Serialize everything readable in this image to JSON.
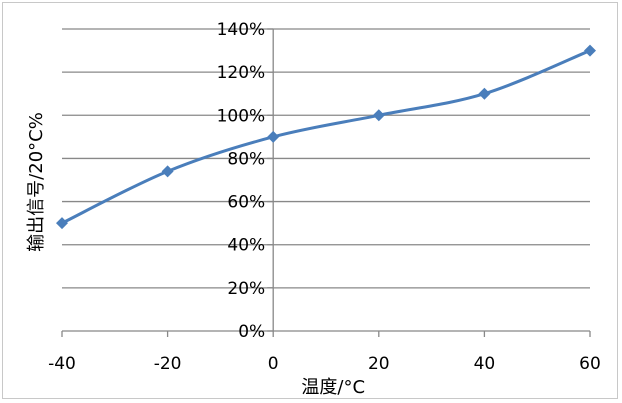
{
  "chart_data": {
    "type": "line",
    "title": "",
    "xlabel": "温度/°C",
    "ylabel": "输出信号/20°C%",
    "x": [
      -40,
      -20,
      0,
      20,
      40,
      60
    ],
    "series": [
      {
        "values": [
          50,
          74,
          90,
          100,
          110,
          130
        ],
        "color": "#4a7ebb",
        "marker": "diamond"
      }
    ],
    "xlim": [
      -40,
      60
    ],
    "ylim": [
      0,
      140
    ],
    "x_ticks": [
      -40,
      -20,
      0,
      20,
      40,
      60
    ],
    "x_tick_labels": [
      "-40",
      "-20",
      "0",
      "20",
      "40",
      "60"
    ],
    "y_ticks": [
      0,
      20,
      40,
      60,
      80,
      100,
      120,
      140
    ],
    "y_tick_labels": [
      "0%",
      "20%",
      "40%",
      "60%",
      "80%",
      "100%",
      "120%",
      "140%"
    ],
    "grid": "horizontal",
    "legend": "none"
  }
}
